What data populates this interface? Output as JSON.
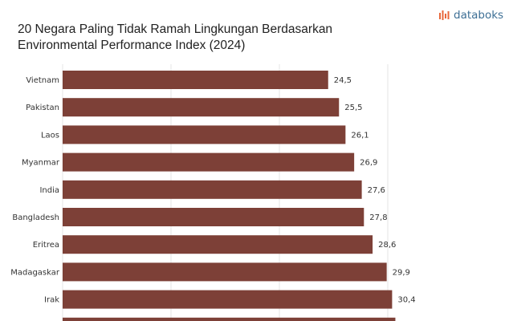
{
  "header": {
    "title_line1": "20 Negara Paling Tidak Ramah Lingkungan Berdasarkan",
    "title_line2": "Environmental Performance Index (2024)",
    "brand_name": "databoks",
    "brand_icon": "bar-logo-icon",
    "brand_color": "#e8673a"
  },
  "chart_data": {
    "type": "bar",
    "orientation": "horizontal",
    "title": "20 Negara Paling Tidak Ramah Lingkungan Berdasarkan Environmental Performance Index (2024)",
    "categories": [
      "Vietnam",
      "Pakistan",
      "Laos",
      "Myanmar",
      "India",
      "Bangladesh",
      "Eritrea",
      "Madagaskar",
      "Irak",
      ""
    ],
    "values": [
      24.5,
      25.5,
      26.1,
      26.9,
      27.6,
      27.8,
      28.6,
      29.9,
      30.4,
      30.7
    ],
    "value_labels": [
      "24,5",
      "25,5",
      "26,1",
      "26,9",
      "27,6",
      "27,8",
      "28,6",
      "29,9",
      "30,4",
      ""
    ],
    "xlim": [
      0,
      35
    ],
    "grid": true,
    "bar_color": "#7d4037"
  }
}
